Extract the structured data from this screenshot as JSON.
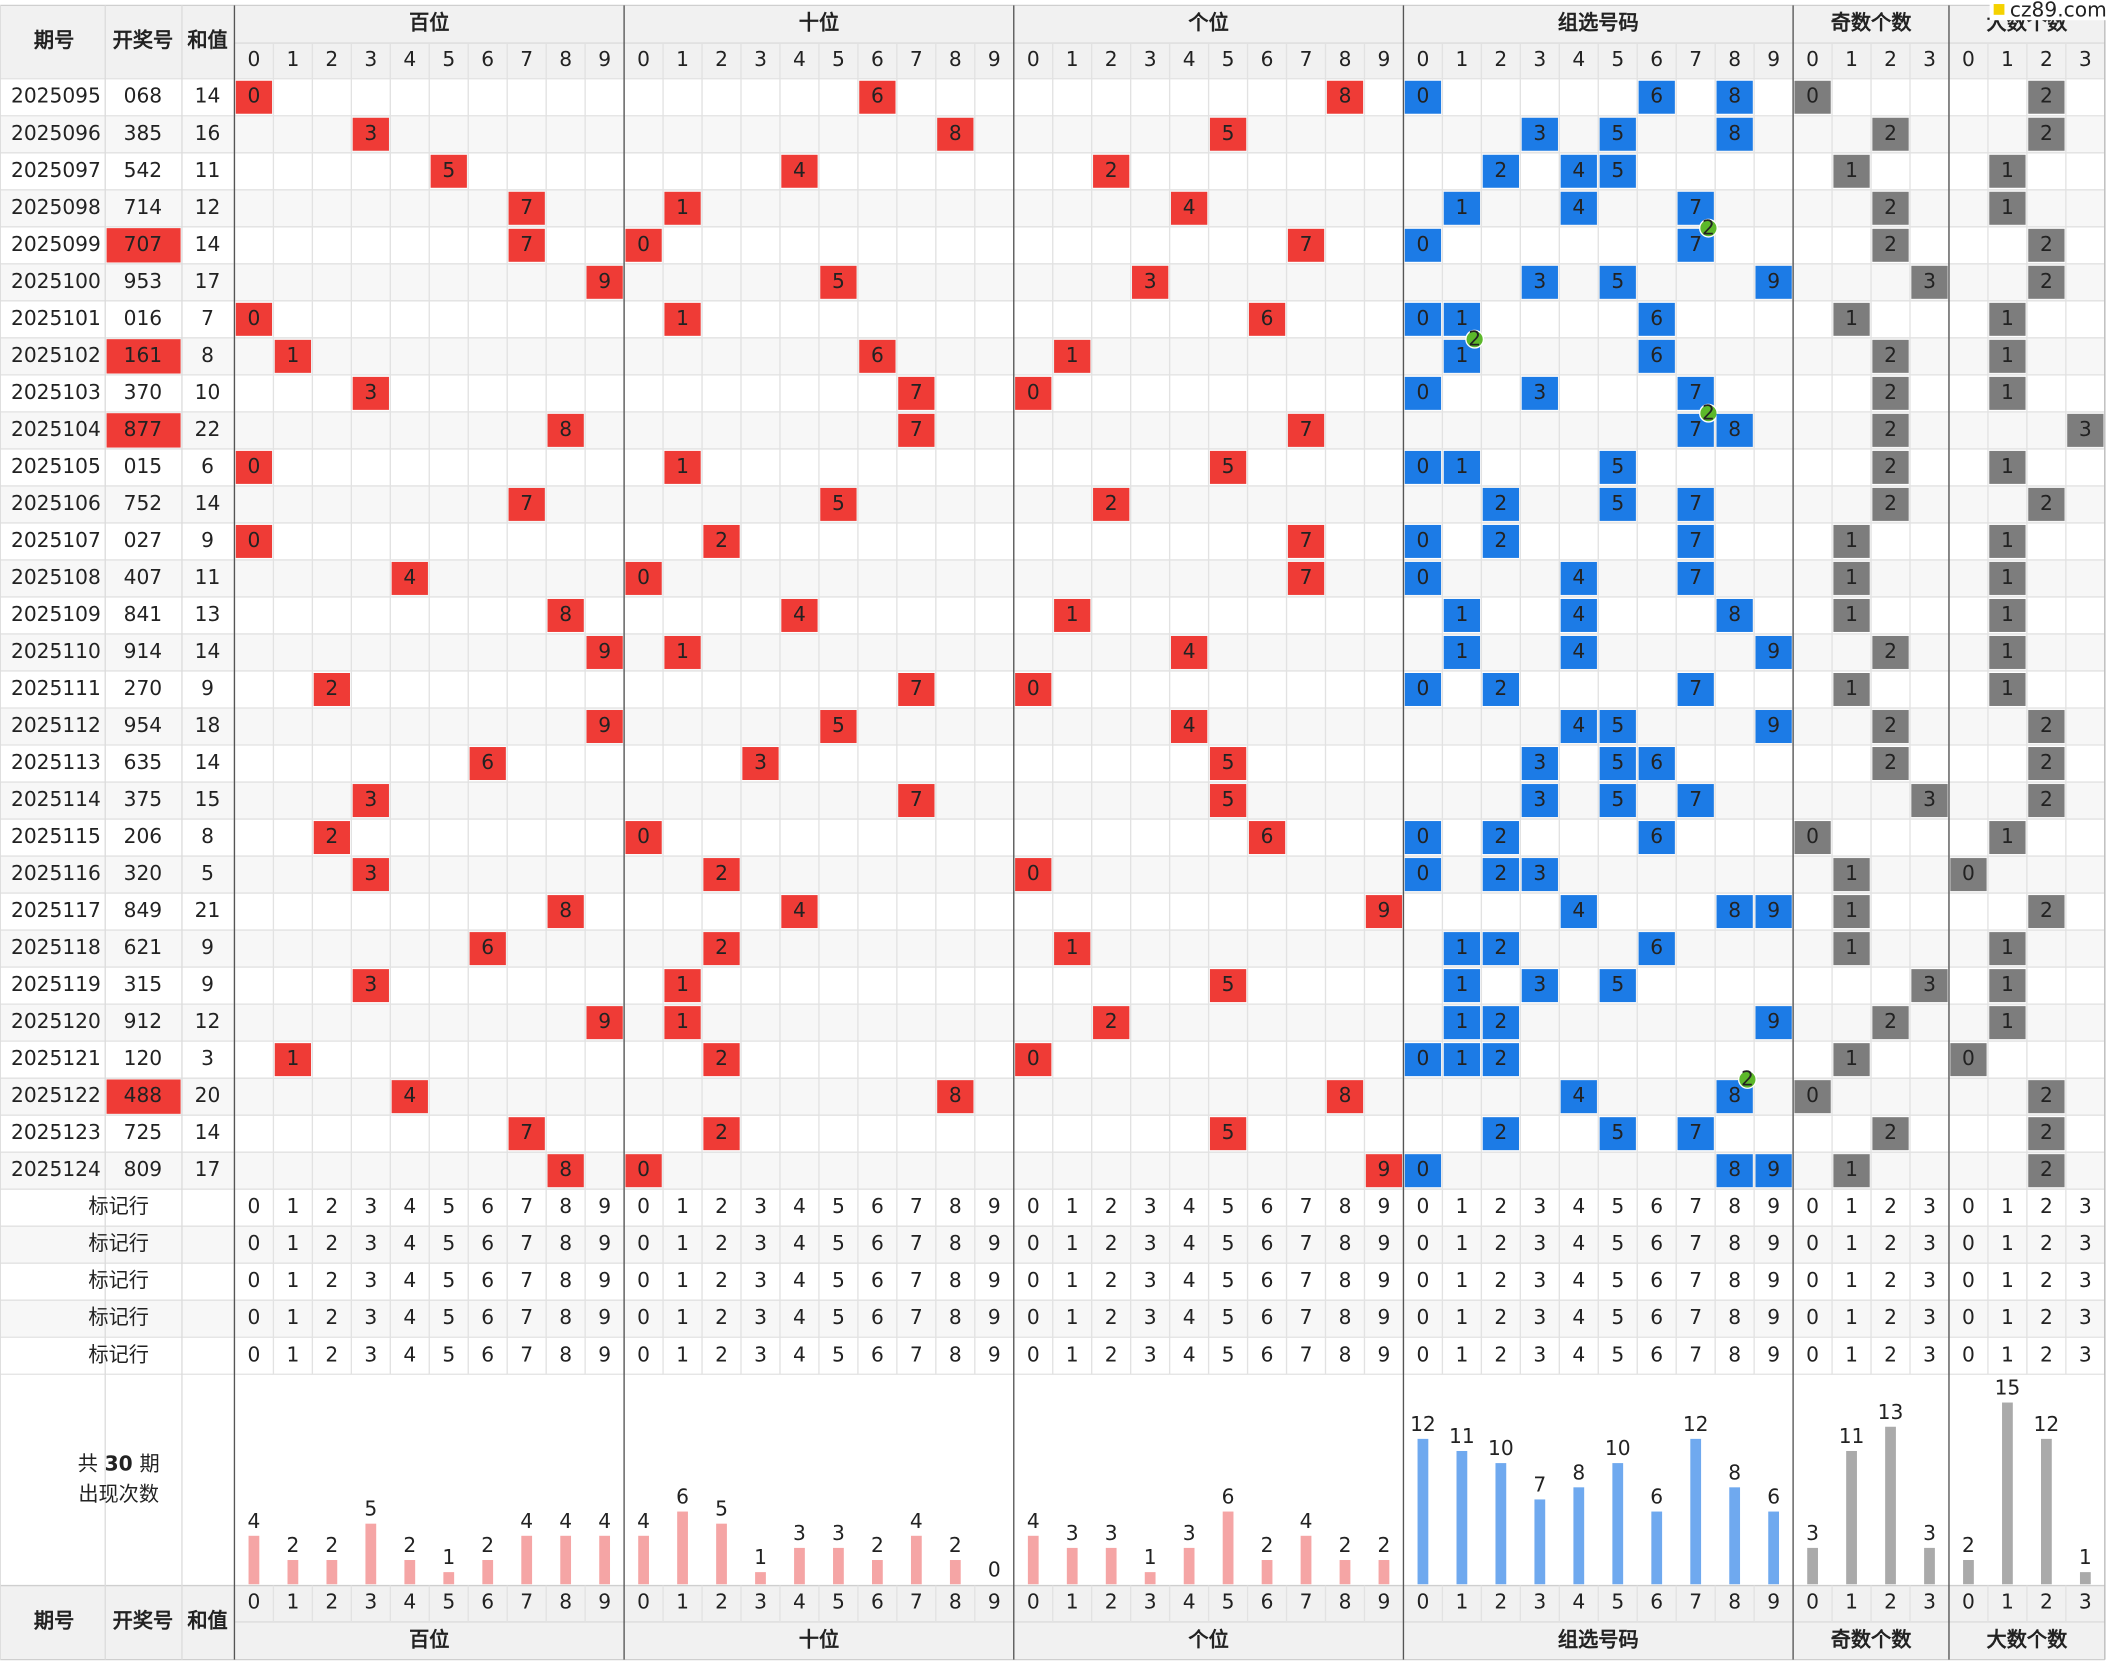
{
  "watermark": "cz89.com",
  "header": {
    "period": "期号",
    "number": "开奖号",
    "sum": "和值",
    "groups": [
      "百位",
      "十位",
      "个位",
      "组选号码",
      "奇数个数",
      "大数个数"
    ]
  },
  "digits": [
    0,
    1,
    2,
    3,
    4,
    5,
    6,
    7,
    8,
    9
  ],
  "count_digits": [
    0,
    1,
    2,
    3
  ],
  "rows": [
    {
      "period": 2025095,
      "number": "068",
      "sum": 14
    },
    {
      "period": 2025096,
      "number": "385",
      "sum": 16
    },
    {
      "period": 2025097,
      "number": "542",
      "sum": 11
    },
    {
      "period": 2025098,
      "number": "714",
      "sum": 12
    },
    {
      "period": 2025099,
      "number": "707",
      "sum": 14,
      "repeat": 2
    },
    {
      "period": 2025100,
      "number": "953",
      "sum": 17
    },
    {
      "period": 2025101,
      "number": "016",
      "sum": 7
    },
    {
      "period": 2025102,
      "number": "161",
      "sum": 8,
      "repeat": 2
    },
    {
      "period": 2025103,
      "number": "370",
      "sum": 10
    },
    {
      "period": 2025104,
      "number": "877",
      "sum": 22,
      "repeat": 2
    },
    {
      "period": 2025105,
      "number": "015",
      "sum": 6
    },
    {
      "period": 2025106,
      "number": "752",
      "sum": 14
    },
    {
      "period": 2025107,
      "number": "027",
      "sum": 9
    },
    {
      "period": 2025108,
      "number": "407",
      "sum": 11
    },
    {
      "period": 2025109,
      "number": "841",
      "sum": 13
    },
    {
      "period": 2025110,
      "number": "914",
      "sum": 14
    },
    {
      "period": 2025111,
      "number": "270",
      "sum": 9
    },
    {
      "period": 2025112,
      "number": "954",
      "sum": 18
    },
    {
      "period": 2025113,
      "number": "635",
      "sum": 14
    },
    {
      "period": 2025114,
      "number": "375",
      "sum": 15
    },
    {
      "period": 2025115,
      "number": "206",
      "sum": 8
    },
    {
      "period": 2025116,
      "number": "320",
      "sum": 5
    },
    {
      "period": 2025117,
      "number": "849",
      "sum": 21
    },
    {
      "period": 2025118,
      "number": "621",
      "sum": 9
    },
    {
      "period": 2025119,
      "number": "315",
      "sum": 9
    },
    {
      "period": 2025120,
      "number": "912",
      "sum": 12
    },
    {
      "period": 2025121,
      "number": "120",
      "sum": 3
    },
    {
      "period": 2025122,
      "number": "488",
      "sum": 20,
      "repeat": 2
    },
    {
      "period": 2025123,
      "number": "725",
      "sum": 14
    },
    {
      "period": 2025124,
      "number": "809",
      "sum": 17
    }
  ],
  "marker_rows": [
    "标记行",
    "标记行",
    "标记行",
    "标记行",
    "标记行"
  ],
  "stats": {
    "prefix": "共",
    "periods": 30,
    "suffix": "期",
    "label": "出现次数",
    "hundreds": [
      4,
      2,
      2,
      5,
      2,
      1,
      2,
      4,
      4,
      4
    ],
    "tens": [
      4,
      6,
      5,
      1,
      3,
      3,
      2,
      4,
      2,
      0
    ],
    "units": [
      4,
      3,
      3,
      1,
      3,
      6,
      2,
      4,
      2,
      2
    ],
    "group": [
      12,
      11,
      10,
      7,
      8,
      10,
      6,
      12,
      8,
      6
    ],
    "odd": [
      3,
      11,
      13,
      3
    ],
    "big": [
      2,
      15,
      12,
      1
    ]
  }
}
